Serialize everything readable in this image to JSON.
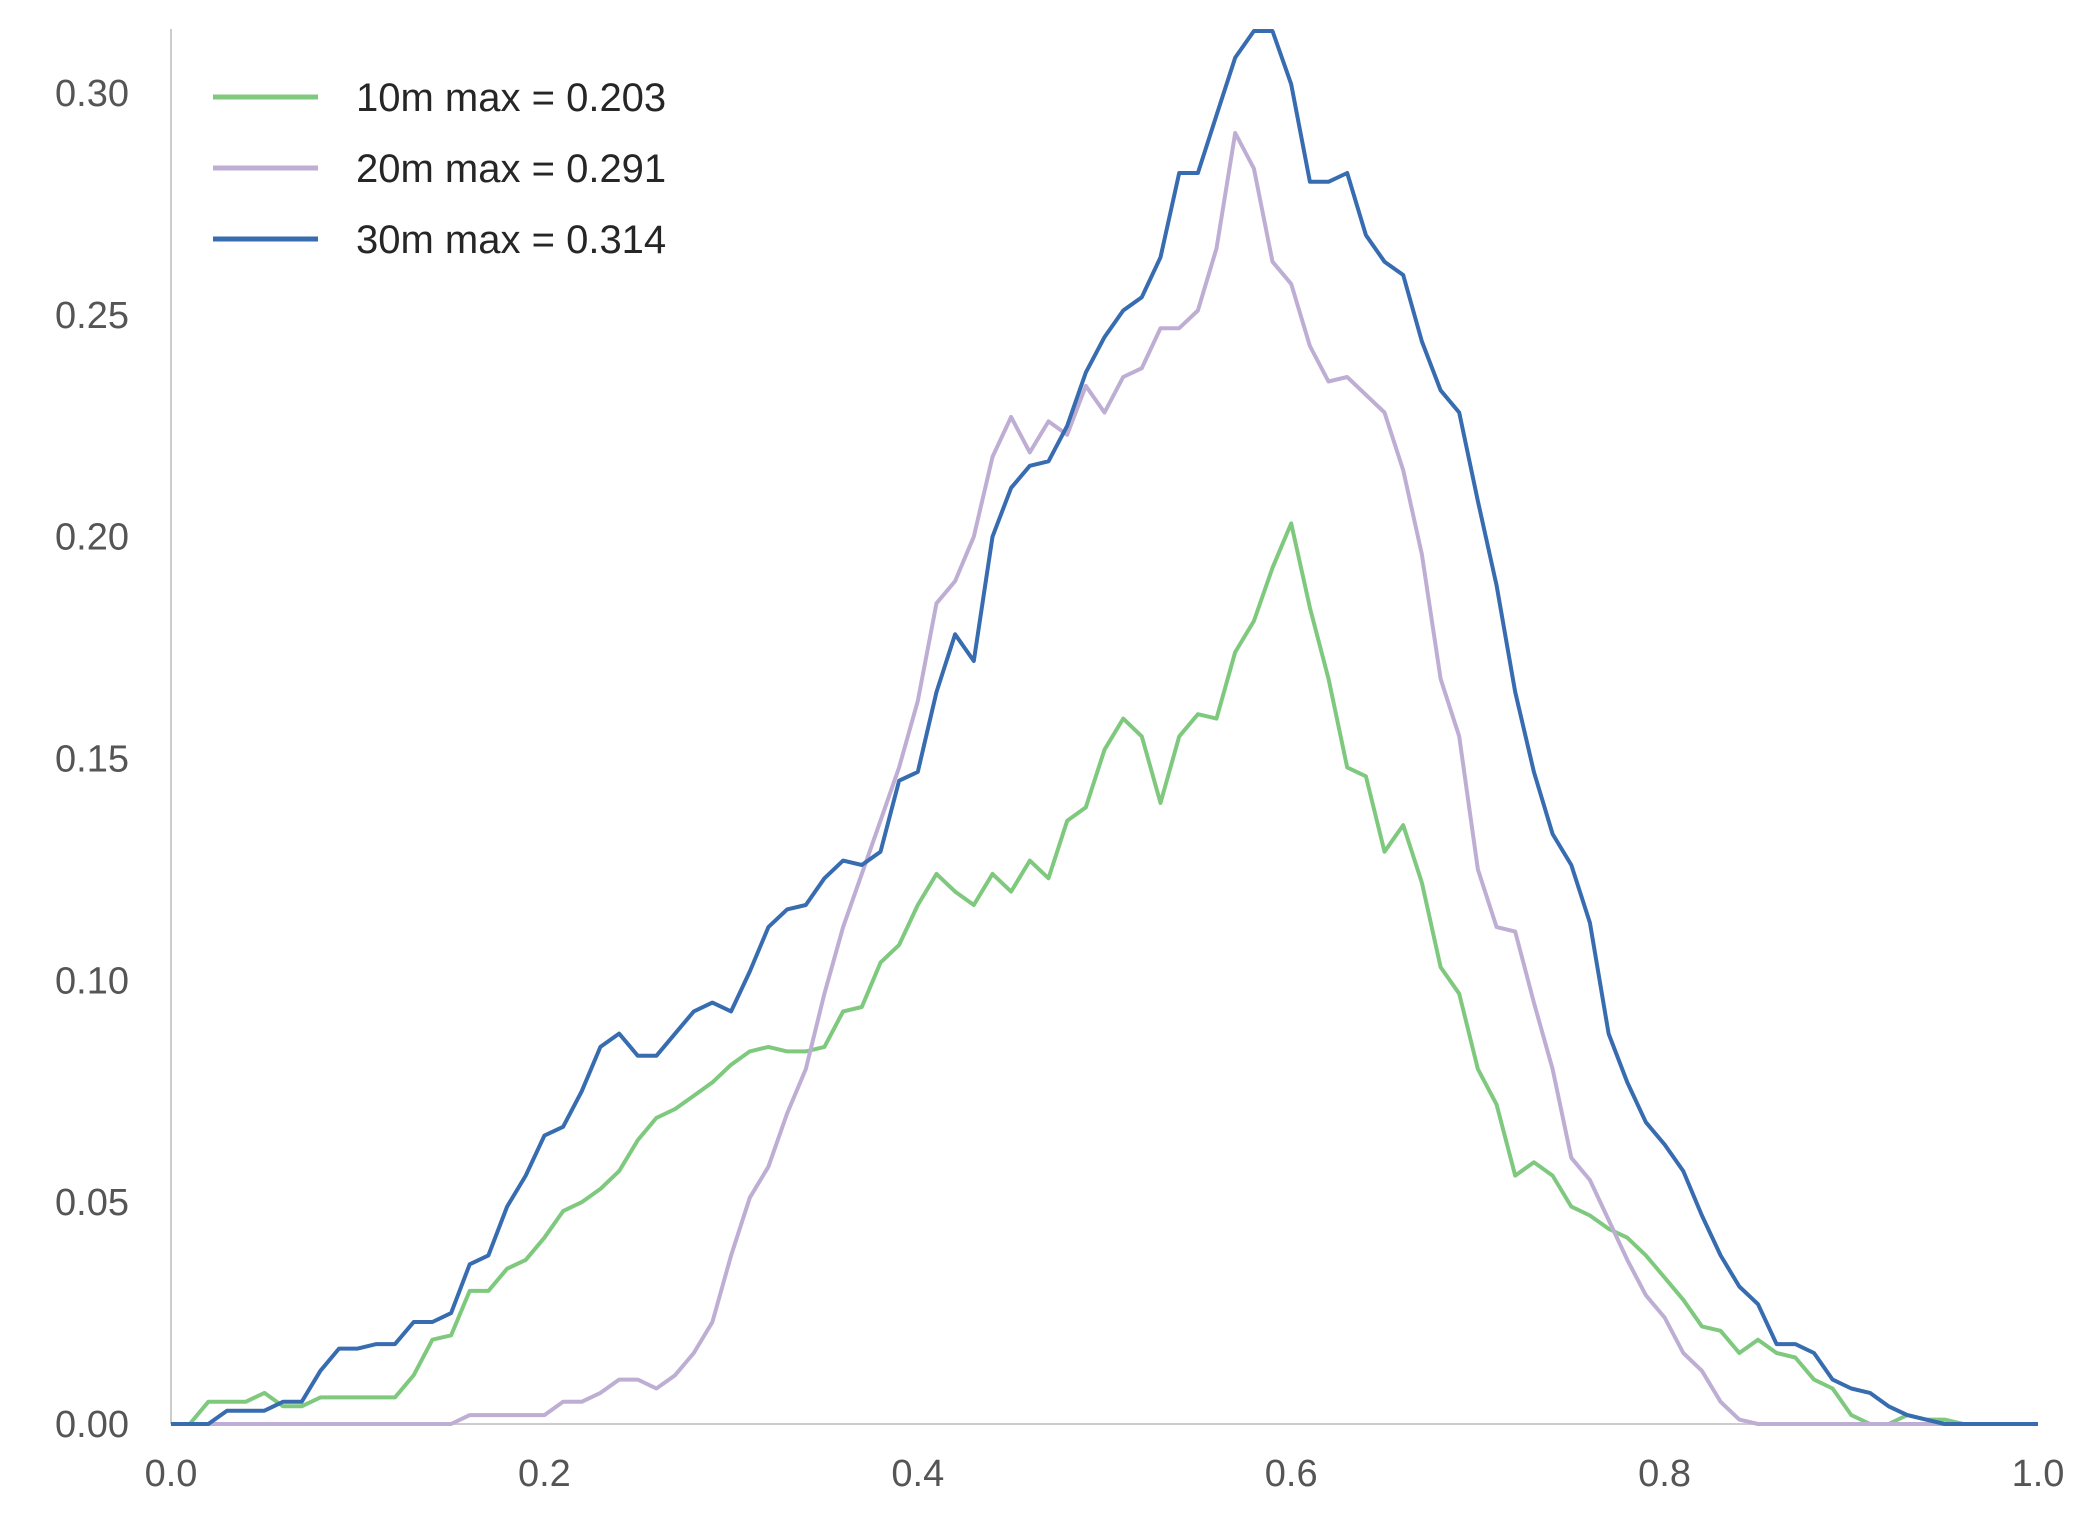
{
  "chart_data": {
    "type": "line",
    "title": "",
    "xlabel": "",
    "ylabel": "",
    "xlim": [
      0.0,
      1.0
    ],
    "ylim": [
      0.0,
      0.314
    ],
    "xticks": [
      "0.0",
      "0.2",
      "0.4",
      "0.6",
      "0.8",
      "1.0"
    ],
    "yticks": [
      "0.00",
      "0.05",
      "0.10",
      "0.15",
      "0.20",
      "0.25",
      "0.30"
    ],
    "grid": false,
    "legend_position": "top-left",
    "x": [
      0.0,
      0.01,
      0.02,
      0.03,
      0.04,
      0.05,
      0.06,
      0.07,
      0.08,
      0.09,
      0.1,
      0.11,
      0.12,
      0.13,
      0.14,
      0.15,
      0.16,
      0.17,
      0.18,
      0.19,
      0.2,
      0.21,
      0.22,
      0.23,
      0.24,
      0.25,
      0.26,
      0.27,
      0.28,
      0.29,
      0.3,
      0.31,
      0.32,
      0.33,
      0.34,
      0.35,
      0.36,
      0.37,
      0.38,
      0.39,
      0.4,
      0.41,
      0.42,
      0.43,
      0.44,
      0.45,
      0.46,
      0.47,
      0.48,
      0.49,
      0.5,
      0.51,
      0.52,
      0.53,
      0.54,
      0.55,
      0.56,
      0.57,
      0.58,
      0.59,
      0.6,
      0.61,
      0.62,
      0.63,
      0.64,
      0.65,
      0.66,
      0.67,
      0.68,
      0.69,
      0.7,
      0.71,
      0.72,
      0.73,
      0.74,
      0.75,
      0.76,
      0.77,
      0.78,
      0.79,
      0.8,
      0.81,
      0.82,
      0.83,
      0.84,
      0.85,
      0.86,
      0.87,
      0.88,
      0.89,
      0.9,
      0.91,
      0.92,
      0.93,
      0.94,
      0.95,
      0.96,
      0.97,
      0.98,
      0.99,
      1.0
    ],
    "series": [
      {
        "name": "10m max = 0.203",
        "color": "#7fc97f",
        "values": [
          0.0,
          0.0,
          0.005,
          0.005,
          0.005,
          0.007,
          0.004,
          0.004,
          0.006,
          0.006,
          0.006,
          0.006,
          0.006,
          0.011,
          0.019,
          0.02,
          0.03,
          0.03,
          0.035,
          0.037,
          0.042,
          0.048,
          0.05,
          0.053,
          0.057,
          0.064,
          0.069,
          0.071,
          0.074,
          0.077,
          0.081,
          0.084,
          0.085,
          0.084,
          0.084,
          0.085,
          0.093,
          0.094,
          0.104,
          0.108,
          0.117,
          0.124,
          0.12,
          0.117,
          0.124,
          0.12,
          0.127,
          0.123,
          0.136,
          0.139,
          0.152,
          0.159,
          0.155,
          0.14,
          0.155,
          0.16,
          0.159,
          0.174,
          0.181,
          0.193,
          0.203,
          0.184,
          0.168,
          0.148,
          0.146,
          0.129,
          0.135,
          0.122,
          0.103,
          0.097,
          0.08,
          0.072,
          0.056,
          0.059,
          0.056,
          0.049,
          0.047,
          0.044,
          0.042,
          0.038,
          0.033,
          0.028,
          0.022,
          0.021,
          0.016,
          0.019,
          0.016,
          0.015,
          0.01,
          0.008,
          0.002,
          0.0,
          0.0,
          0.002,
          0.001,
          0.001,
          0.0,
          0.0,
          0.0,
          0.0,
          0.0
        ]
      },
      {
        "name": "20m max = 0.291",
        "color": "#beaed4",
        "values": [
          0.0,
          0.0,
          0.0,
          0.0,
          0.0,
          0.0,
          0.0,
          0.0,
          0.0,
          0.0,
          0.0,
          0.0,
          0.0,
          0.0,
          0.0,
          0.0,
          0.002,
          0.002,
          0.002,
          0.002,
          0.002,
          0.005,
          0.005,
          0.007,
          0.01,
          0.01,
          0.008,
          0.011,
          0.016,
          0.023,
          0.038,
          0.051,
          0.058,
          0.07,
          0.08,
          0.097,
          0.112,
          0.124,
          0.136,
          0.148,
          0.163,
          0.185,
          0.19,
          0.2,
          0.218,
          0.227,
          0.219,
          0.226,
          0.223,
          0.234,
          0.228,
          0.236,
          0.238,
          0.247,
          0.247,
          0.251,
          0.265,
          0.291,
          0.283,
          0.262,
          0.257,
          0.243,
          0.235,
          0.236,
          0.232,
          0.228,
          0.215,
          0.196,
          0.168,
          0.155,
          0.125,
          0.112,
          0.111,
          0.095,
          0.08,
          0.06,
          0.055,
          0.046,
          0.037,
          0.029,
          0.024,
          0.016,
          0.012,
          0.005,
          0.001,
          0.0,
          0.0,
          0.0,
          0.0,
          0.0,
          0.0,
          0.0,
          0.0,
          0.0,
          0.0,
          0.0,
          0.0,
          0.0,
          0.0,
          0.0,
          0.0
        ]
      },
      {
        "name": "30m max = 0.314",
        "color": "#386cb0",
        "values": [
          0.0,
          0.0,
          0.0,
          0.003,
          0.003,
          0.003,
          0.005,
          0.005,
          0.012,
          0.017,
          0.017,
          0.018,
          0.018,
          0.023,
          0.023,
          0.025,
          0.036,
          0.038,
          0.049,
          0.056,
          0.065,
          0.067,
          0.075,
          0.085,
          0.088,
          0.083,
          0.083,
          0.088,
          0.093,
          0.095,
          0.093,
          0.102,
          0.112,
          0.116,
          0.117,
          0.123,
          0.127,
          0.126,
          0.129,
          0.145,
          0.147,
          0.165,
          0.178,
          0.172,
          0.2,
          0.211,
          0.216,
          0.217,
          0.225,
          0.237,
          0.245,
          0.251,
          0.254,
          0.263,
          0.282,
          0.282,
          0.295,
          0.308,
          0.314,
          0.314,
          0.302,
          0.28,
          0.28,
          0.282,
          0.268,
          0.262,
          0.259,
          0.244,
          0.233,
          0.228,
          0.208,
          0.189,
          0.165,
          0.147,
          0.133,
          0.126,
          0.113,
          0.088,
          0.077,
          0.068,
          0.063,
          0.057,
          0.047,
          0.038,
          0.031,
          0.027,
          0.018,
          0.018,
          0.016,
          0.01,
          0.008,
          0.007,
          0.004,
          0.002,
          0.001,
          0.0,
          0.0,
          0.0,
          0.0,
          0.0,
          0.0
        ]
      }
    ]
  }
}
